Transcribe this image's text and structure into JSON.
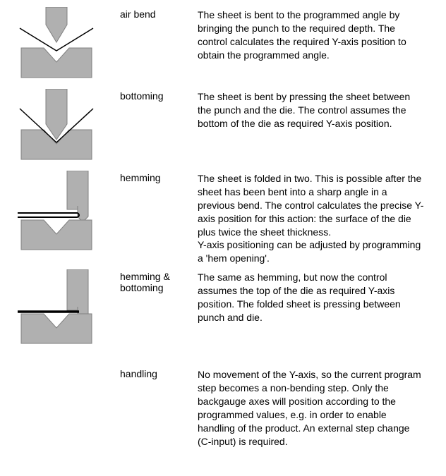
{
  "colors": {
    "tool_fill": "#b0b0b0",
    "tool_stroke": "#808080",
    "sheet": "#000000",
    "bg": "#ffffff"
  },
  "entries": [
    {
      "label": "air bend",
      "desc": "The sheet is bent to the programmed angle by bringing the punch to the required depth. The control calculates the required Y-axis position to obtain the programmed angle."
    },
    {
      "label": "bottoming",
      "desc": "The sheet is bent by pressing the sheet between the punch and the die. The control assumes the bottom of the die as required Y-axis position."
    },
    {
      "label": "hemming",
      "desc": "The sheet is folded in two. This is possible after the sheet has been bent into a sharp angle in a previous bend. The control calculates the precise Y-axis position for this action: the surface of the die plus twice the sheet thickness.\nY-axis positioning can be adjusted by programming a 'hem opening'."
    },
    {
      "label": "hemming & bottoming",
      "desc": "The same as hemming, but now the control assumes the top of the die as required Y-axis position. The folded sheet is pressing between punch and die."
    },
    {
      "label": "handling",
      "desc": "No movement of the Y-axis, so the current program step becomes a non-bending step. Only the backgauge axes will position according to the programmed values, e.g. in order to enable handling of the product. An external step change (C-input) is required."
    }
  ]
}
